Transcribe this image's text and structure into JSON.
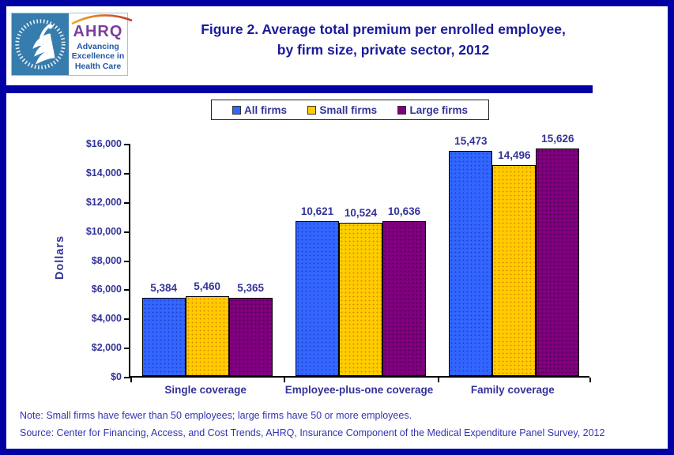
{
  "header": {
    "logo": {
      "acronym": "AHRQ",
      "tagline": [
        "Advancing",
        "Excellence in",
        "Health Care"
      ]
    },
    "title_line1": "Figure 2. Average total premium per enrolled employee,",
    "title_line2": "by firm size, private sector, 2012"
  },
  "chart_data": {
    "type": "bar",
    "title": "Figure 2. Average total premium per enrolled employee, by firm size, private sector, 2012",
    "categories": [
      "Single coverage",
      "Employee-plus-one coverage",
      "Family coverage"
    ],
    "series": [
      {
        "name": "All firms",
        "color": "#3366FF",
        "dot": "#2244CC",
        "values": [
          5384,
          10621,
          15473
        ]
      },
      {
        "name": "Small firms",
        "color": "#FFCC00",
        "dot": "#E08800",
        "values": [
          5460,
          10524,
          14496
        ]
      },
      {
        "name": "Large firms",
        "color": "#800080",
        "dot": "#4D004D",
        "values": [
          5365,
          10636,
          15626
        ]
      }
    ],
    "xlabel": "",
    "ylabel": "Dollars",
    "ylim": [
      0,
      16000
    ],
    "ytick_step": 2000,
    "ytick_prefix": "$",
    "grid": false,
    "legend_position": "top"
  },
  "footer": {
    "note": "Note: Small firms have fewer than 50 employees; large firms have 50 or more employees.",
    "source": "Source: Center for Financing, Access, and Cost Trends, AHRQ, Insurance Component of the Medical Expenditure Panel Survey,  2012"
  },
  "colors": {
    "frame_border": "#0000A4",
    "title_text": "#1A1A9C",
    "chart_text": "#333399",
    "note_text": "#3333B3",
    "hhs_panel": "#367CAD",
    "ahrq_purple": "#7B3F9E",
    "tagline_blue": "#2156A5"
  }
}
